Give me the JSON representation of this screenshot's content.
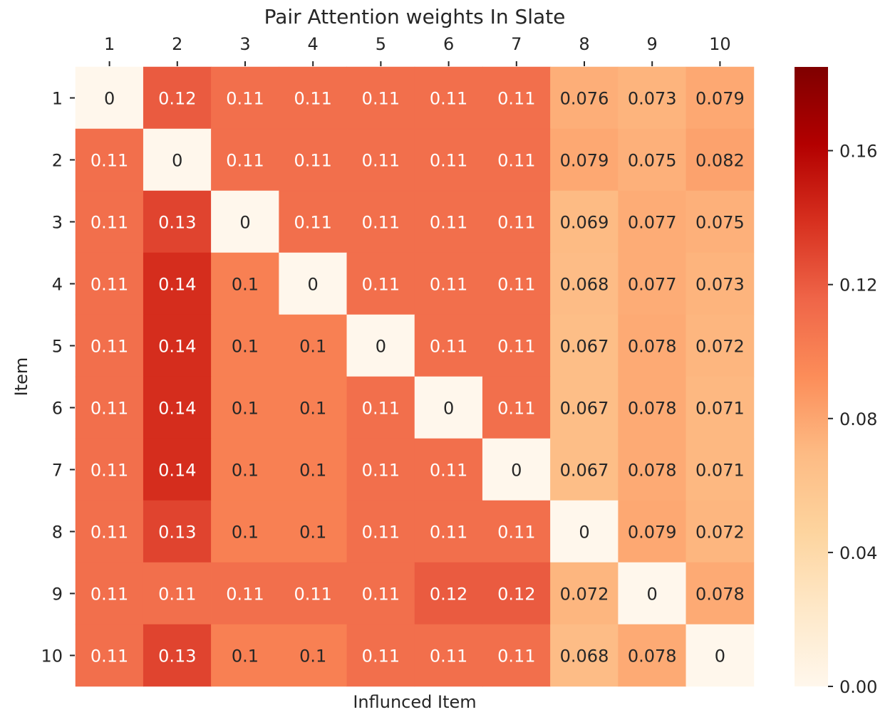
{
  "chart_data": {
    "type": "heatmap",
    "title": "Pair Attention weights In Slate",
    "xlabel": "Influnced Item",
    "ylabel": "Item",
    "x_categories": [
      "1",
      "2",
      "3",
      "4",
      "5",
      "6",
      "7",
      "8",
      "9",
      "10"
    ],
    "y_categories": [
      "1",
      "2",
      "3",
      "4",
      "5",
      "6",
      "7",
      "8",
      "9",
      "10"
    ],
    "x_axis_position": "top",
    "values": [
      [
        0,
        0.12,
        0.11,
        0.11,
        0.11,
        0.11,
        0.11,
        0.076,
        0.073,
        0.079
      ],
      [
        0.11,
        0,
        0.11,
        0.11,
        0.11,
        0.11,
        0.11,
        0.079,
        0.075,
        0.082
      ],
      [
        0.11,
        0.13,
        0,
        0.11,
        0.11,
        0.11,
        0.11,
        0.069,
        0.077,
        0.075
      ],
      [
        0.11,
        0.14,
        0.1,
        0,
        0.11,
        0.11,
        0.11,
        0.068,
        0.077,
        0.073
      ],
      [
        0.11,
        0.14,
        0.1,
        0.1,
        0,
        0.11,
        0.11,
        0.067,
        0.078,
        0.072
      ],
      [
        0.11,
        0.14,
        0.1,
        0.1,
        0.11,
        0,
        0.11,
        0.067,
        0.078,
        0.071
      ],
      [
        0.11,
        0.14,
        0.1,
        0.1,
        0.11,
        0.11,
        0,
        0.067,
        0.078,
        0.071
      ],
      [
        0.11,
        0.13,
        0.1,
        0.1,
        0.11,
        0.11,
        0.11,
        0,
        0.079,
        0.072
      ],
      [
        0.11,
        0.11,
        0.11,
        0.11,
        0.11,
        0.12,
        0.12,
        0.072,
        0,
        0.078
      ],
      [
        0.11,
        0.13,
        0.1,
        0.1,
        0.11,
        0.11,
        0.11,
        0.068,
        0.078,
        0
      ]
    ],
    "colorbar": {
      "colormap": "OrRd",
      "range": [
        0,
        0.185
      ],
      "ticks": [
        0,
        0.04,
        0.08,
        0.12,
        0.16
      ],
      "tick_labels": [
        "0.00",
        "0.04",
        "0.08",
        "0.12",
        "0.16"
      ],
      "stops": [
        "#fff7ec",
        "#fee8c8",
        "#fdd49e",
        "#fdbb84",
        "#fc8d59",
        "#ef6548",
        "#d7301f",
        "#b30000",
        "#7f0000"
      ]
    },
    "grid": false,
    "legend": "colorbar-right"
  }
}
